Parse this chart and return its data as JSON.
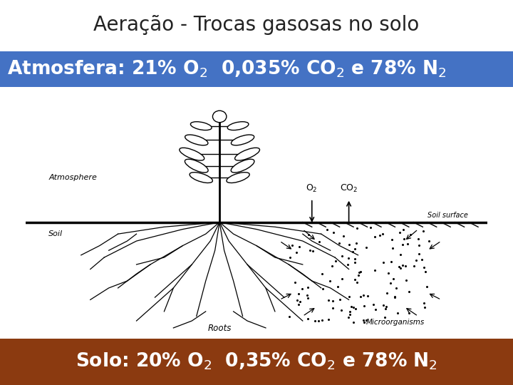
{
  "title": "Aeração - Trocas gasosas no solo",
  "title_fontsize": 20,
  "title_color": "#222222",
  "bg_color": "#ffffff",
  "atm_banner_color": "#4472C4",
  "atm_text": "Atmosfera: 21% O$_2$  0,035% CO$_2$ e 78% N$_2$",
  "atm_text_color": "#ffffff",
  "atm_fontsize": 19,
  "solo_banner_color": "#8B3A10",
  "solo_text": "Solo: 20% O$_2$  0,35% CO$_2$ e 78% N$_2$",
  "solo_text_color": "#ffffff",
  "solo_fontsize": 19,
  "diagram_bg": "#ffffff",
  "soil_hatch_color": "#000000",
  "label_fontsize": 8
}
